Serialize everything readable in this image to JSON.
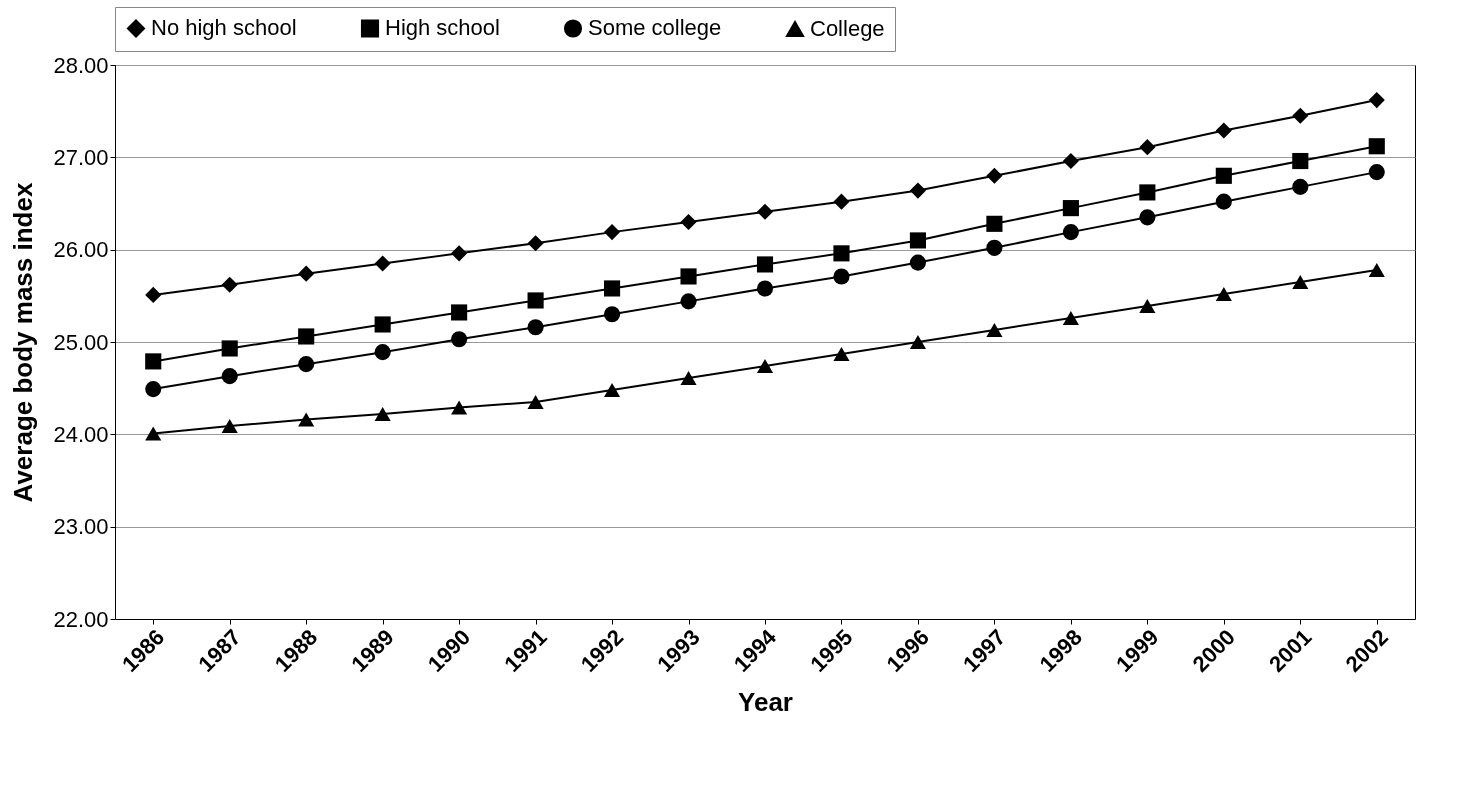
{
  "chart_data": {
    "type": "line",
    "xlabel": "Year",
    "ylabel": "Average body mass index",
    "categories": [
      "1986",
      "1987",
      "1988",
      "1989",
      "1990",
      "1991",
      "1992",
      "1993",
      "1994",
      "1995",
      "1996",
      "1997",
      "1998",
      "1999",
      "2000",
      "2001",
      "2002"
    ],
    "ylim": [
      22,
      28
    ],
    "yticks": [
      {
        "value": 22,
        "label": "22.00"
      },
      {
        "value": 23,
        "label": "23.00"
      },
      {
        "value": 24,
        "label": "24.00"
      },
      {
        "value": 25,
        "label": "25.00"
      },
      {
        "value": 26,
        "label": "26.00"
      },
      {
        "value": 27,
        "label": "27.00"
      },
      {
        "value": 28,
        "label": "28.00"
      }
    ],
    "grid": "y",
    "legend": "top",
    "line_style": "solid",
    "series": [
      {
        "name": "No high school",
        "color": "#000000",
        "marker": "diamond",
        "values": [
          25.51,
          25.62,
          25.74,
          25.85,
          25.96,
          26.07,
          26.19,
          26.3,
          26.41,
          26.52,
          26.64,
          26.8,
          26.96,
          27.11,
          27.29,
          27.45,
          27.62
        ]
      },
      {
        "name": "High school",
        "color": "#000000",
        "marker": "square",
        "values": [
          24.79,
          24.93,
          25.06,
          25.19,
          25.32,
          25.45,
          25.58,
          25.71,
          25.84,
          25.96,
          26.1,
          26.28,
          26.45,
          26.62,
          26.8,
          26.96,
          27.12
        ]
      },
      {
        "name": "Some college",
        "color": "#000000",
        "marker": "circle",
        "values": [
          24.49,
          24.63,
          24.76,
          24.89,
          25.03,
          25.16,
          25.3,
          25.44,
          25.58,
          25.71,
          25.86,
          26.02,
          26.19,
          26.35,
          26.52,
          26.68,
          26.84
        ]
      },
      {
        "name": "College",
        "color": "#000000",
        "marker": "triangle",
        "values": [
          24.01,
          24.09,
          24.16,
          24.22,
          24.29,
          24.35,
          24.48,
          24.61,
          24.74,
          24.87,
          25.0,
          25.13,
          25.26,
          25.39,
          25.52,
          25.65,
          25.78
        ]
      }
    ]
  }
}
